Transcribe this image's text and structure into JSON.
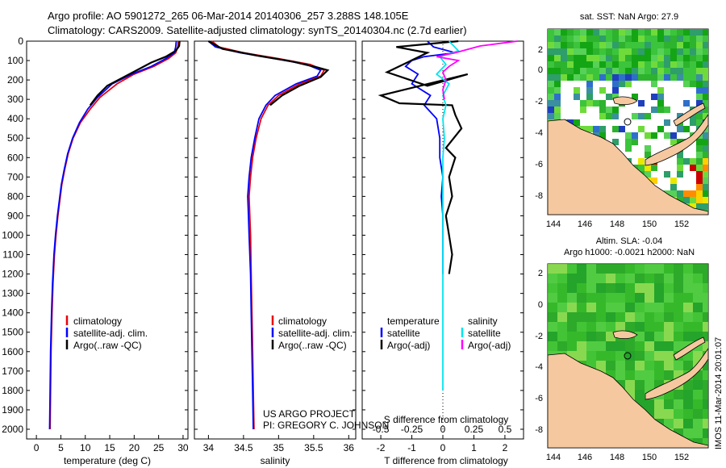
{
  "header": {
    "line1": "Argo profile: AO 5901272_265 06-Mar-2014 20140306_257 3.288S 148.105E",
    "line2": "Climatology: CARS2009. Satellite-adjusted climatology: synTS_20140304.nc (2.7d earlier)"
  },
  "colors": {
    "climatology": "#e8000b",
    "satellite": "#0000ff",
    "argo": "#000000",
    "sat_salinity": "#00e5ee",
    "argo_salinity": "#ff00ff",
    "land": "#f5c8a0"
  },
  "chart_data": [
    {
      "id": "temperature",
      "type": "line",
      "xlabel": "temperature (deg C)",
      "ylabel": "",
      "xlim": [
        -2,
        31
      ],
      "ylim": [
        2050,
        0
      ],
      "xticks": [
        0,
        5,
        10,
        15,
        20,
        25,
        30
      ],
      "yticks": [
        0,
        100,
        200,
        300,
        400,
        500,
        600,
        700,
        800,
        900,
        1000,
        1100,
        1200,
        1300,
        1400,
        1500,
        1600,
        1700,
        1800,
        1900,
        2000
      ],
      "legend": {
        "position": "lower-center",
        "items": [
          {
            "label": "climatology",
            "series": "climatology"
          },
          {
            "label": "satellite-adj. clim.",
            "series": "satellite"
          },
          {
            "label": "Argo(..raw -QC)",
            "series": "argo"
          }
        ]
      },
      "series": [
        {
          "name": "climatology",
          "key": "climatology",
          "points": [
            [
              29.0,
              0
            ],
            [
              28.9,
              30
            ],
            [
              28.5,
              60
            ],
            [
              27.0,
              90
            ],
            [
              24.0,
              130
            ],
            [
              20.0,
              170
            ],
            [
              16.5,
              220
            ],
            [
              13.0,
              290
            ],
            [
              11.0,
              350
            ],
            [
              9.0,
              420
            ],
            [
              7.5,
              500
            ],
            [
              6.5,
              580
            ],
            [
              5.8,
              660
            ],
            [
              5.2,
              740
            ],
            [
              4.8,
              820
            ],
            [
              4.4,
              900
            ],
            [
              4.0,
              1000
            ],
            [
              3.7,
              1100
            ],
            [
              3.4,
              1250
            ],
            [
              3.2,
              1400
            ],
            [
              3.0,
              1600
            ],
            [
              2.9,
              1800
            ],
            [
              2.8,
              2000
            ]
          ]
        },
        {
          "name": "satellite-adj. clim.",
          "key": "satellite",
          "points": [
            [
              28.6,
              0
            ],
            [
              28.5,
              30
            ],
            [
              28.2,
              60
            ],
            [
              26.5,
              90
            ],
            [
              23.5,
              130
            ],
            [
              19.5,
              170
            ],
            [
              15.5,
              220
            ],
            [
              12.5,
              290
            ],
            [
              10.5,
              350
            ],
            [
              8.8,
              420
            ],
            [
              7.4,
              500
            ],
            [
              6.4,
              580
            ],
            [
              5.7,
              660
            ],
            [
              5.1,
              740
            ],
            [
              4.7,
              820
            ],
            [
              4.3,
              900
            ],
            [
              3.9,
              1000
            ],
            [
              3.6,
              1100
            ],
            [
              3.3,
              1250
            ],
            [
              3.1,
              1400
            ],
            [
              2.9,
              1600
            ],
            [
              2.8,
              1800
            ],
            [
              2.7,
              2000
            ]
          ]
        },
        {
          "name": "Argo(..raw -QC)",
          "key": "argo",
          "points": [
            [
              29.3,
              0
            ],
            [
              29.2,
              25
            ],
            [
              28.5,
              50
            ],
            [
              26.5,
              80
            ],
            [
              23.5,
              110
            ],
            [
              20.5,
              150
            ],
            [
              17.5,
              190
            ],
            [
              14.5,
              230
            ],
            [
              12.5,
              280
            ],
            [
              11.0,
              330
            ]
          ]
        }
      ]
    },
    {
      "id": "salinity",
      "type": "line",
      "xlabel": "salinity",
      "ylabel": "",
      "xlim": [
        33.8,
        36.1
      ],
      "ylim": [
        2050,
        0
      ],
      "xticks": [
        34,
        34.5,
        35,
        35.5,
        36
      ],
      "legend": {
        "position": "lower-center",
        "items": [
          {
            "label": "climatology",
            "series": "climatology"
          },
          {
            "label": "satellite-adj. clim.",
            "series": "satellite"
          },
          {
            "label": "Argo(..raw -QC)",
            "series": "argo"
          }
        ]
      },
      "annotation": [
        "US ARGO PROJECT",
        "PI: GREGORY C. JOHNSON"
      ],
      "series": [
        {
          "name": "climatology",
          "key": "climatology",
          "points": [
            [
              34.05,
              0
            ],
            [
              34.15,
              30
            ],
            [
              34.5,
              60
            ],
            [
              35.0,
              90
            ],
            [
              35.45,
              120
            ],
            [
              35.65,
              150
            ],
            [
              35.6,
              180
            ],
            [
              35.3,
              220
            ],
            [
              35.0,
              280
            ],
            [
              34.85,
              330
            ],
            [
              34.75,
              400
            ],
            [
              34.68,
              500
            ],
            [
              34.63,
              600
            ],
            [
              34.6,
              700
            ],
            [
              34.58,
              800
            ],
            [
              34.59,
              900
            ],
            [
              34.6,
              1000
            ],
            [
              34.61,
              1200
            ],
            [
              34.62,
              1400
            ],
            [
              34.63,
              1600
            ],
            [
              34.64,
              1800
            ],
            [
              34.65,
              2000
            ]
          ]
        },
        {
          "name": "satellite-adj. clim.",
          "key": "satellite",
          "points": [
            [
              34.0,
              0
            ],
            [
              34.1,
              30
            ],
            [
              34.45,
              60
            ],
            [
              34.95,
              90
            ],
            [
              35.4,
              120
            ],
            [
              35.6,
              150
            ],
            [
              35.55,
              180
            ],
            [
              35.25,
              220
            ],
            [
              34.95,
              280
            ],
            [
              34.82,
              330
            ],
            [
              34.72,
              400
            ],
            [
              34.66,
              500
            ],
            [
              34.61,
              600
            ],
            [
              34.58,
              700
            ],
            [
              34.56,
              800
            ],
            [
              34.57,
              900
            ],
            [
              34.58,
              1000
            ],
            [
              34.6,
              1200
            ],
            [
              34.61,
              1400
            ],
            [
              34.62,
              1600
            ],
            [
              34.63,
              1800
            ],
            [
              34.64,
              2000
            ]
          ]
        },
        {
          "name": "Argo(..raw -QC)",
          "key": "argo",
          "points": [
            [
              34.0,
              0
            ],
            [
              34.2,
              40
            ],
            [
              34.7,
              75
            ],
            [
              35.2,
              105
            ],
            [
              35.55,
              135
            ],
            [
              35.7,
              150
            ],
            [
              35.6,
              185
            ],
            [
              35.3,
              230
            ],
            [
              35.05,
              280
            ],
            [
              34.88,
              330
            ]
          ]
        }
      ]
    },
    {
      "id": "difference",
      "type": "line",
      "xlabel": "T difference from climatology",
      "xlabel_top": "S difference from climatology",
      "xlim": [
        -2.6,
        2.6
      ],
      "ylim": [
        2050,
        0
      ],
      "xticks": [
        -2,
        -1,
        0,
        1,
        2
      ],
      "xtick_labels_s": [
        "-0.5",
        "-0.25",
        "0",
        "0.25",
        "0.5"
      ],
      "legend": {
        "position": "lower-center",
        "items": [
          {
            "label": "temperature",
            "series": ""
          },
          {
            "label": "salinity",
            "series": ""
          },
          {
            "label": "satellite",
            "series": "satellite"
          },
          {
            "label": "satellite",
            "series": "sat_salinity"
          },
          {
            "label": "Argo(-adj)",
            "series": "argo"
          },
          {
            "label": "Argo(-adj)",
            "series": "argo_salinity"
          }
        ]
      },
      "series": [
        {
          "name": "T satellite",
          "key": "satellite",
          "points": [
            [
              -0.5,
              0
            ],
            [
              -0.3,
              30
            ],
            [
              0.4,
              60
            ],
            [
              -0.6,
              80
            ],
            [
              -1.0,
              100
            ],
            [
              -1.2,
              130
            ],
            [
              -0.8,
              170
            ],
            [
              -1.0,
              220
            ],
            [
              -0.4,
              280
            ],
            [
              -0.6,
              330
            ],
            [
              -0.2,
              400
            ],
            [
              -0.1,
              500
            ],
            [
              -0.1,
              600
            ],
            [
              0,
              700
            ],
            [
              -0.05,
              800
            ],
            [
              0,
              900
            ],
            [
              0,
              1000
            ],
            [
              0,
              1100
            ],
            [
              0,
              1200
            ]
          ]
        },
        {
          "name": "T Argo",
          "key": "argo",
          "points": [
            [
              0.5,
              0
            ],
            [
              -1.5,
              30
            ],
            [
              -0.5,
              60
            ],
            [
              -1.8,
              160
            ],
            [
              -0.5,
              230
            ],
            [
              0.8,
              170
            ],
            [
              -2.0,
              280
            ],
            [
              -1.4,
              320
            ],
            [
              0.3,
              330
            ],
            [
              0.4,
              380
            ],
            [
              0.6,
              450
            ],
            [
              0.1,
              550
            ],
            [
              0.4,
              600
            ],
            [
              0.2,
              700
            ],
            [
              0.3,
              800
            ],
            [
              0.1,
              900
            ],
            [
              0.2,
              1000
            ],
            [
              0.3,
              1100
            ],
            [
              0.2,
              1200
            ]
          ]
        },
        {
          "name": "S satellite",
          "key": "sat_salinity",
          "points": [
            [
              0.2,
              0
            ],
            [
              0.5,
              50
            ],
            [
              -0.1,
              80
            ],
            [
              0.1,
              120
            ],
            [
              -0.2,
              170
            ],
            [
              0.2,
              220
            ],
            [
              0.0,
              280
            ],
            [
              0.1,
              330
            ],
            [
              0.0,
              400
            ],
            [
              0.05,
              500
            ],
            [
              0,
              600
            ],
            [
              0,
              800
            ],
            [
              0,
              1200
            ],
            [
              0,
              1500
            ],
            [
              0,
              1800
            ]
          ]
        },
        {
          "name": "S Argo",
          "key": "argo_salinity",
          "points": [
            [
              2.4,
              0
            ],
            [
              1.2,
              25
            ],
            [
              0.4,
              60
            ],
            [
              -0.2,
              80
            ],
            [
              0.5,
              100
            ],
            [
              0.2,
              130
            ],
            [
              0.0,
              160
            ],
            [
              0.1,
              200
            ],
            [
              0.0,
              250
            ],
            [
              0.05,
              300
            ]
          ]
        }
      ]
    }
  ],
  "map_sst": {
    "title": "sat. SST: NaN Argo: 27.9",
    "xticks": [
      "144",
      "146",
      "148",
      "150",
      "152"
    ],
    "yticks": [
      "2",
      "0",
      "-2",
      "-4",
      "-6",
      "-8"
    ]
  },
  "map_sla": {
    "title1": "Altim. SLA: -0.04",
    "title2": "Argo h1000: -0.0021 h2000: NaN",
    "xticks": [
      "144",
      "146",
      "148",
      "150",
      "152"
    ],
    "yticks": [
      "2",
      "0",
      "-2",
      "-4",
      "-6",
      "-8"
    ]
  },
  "side_text": "IMOS 11-Mar-2014 20:01:07"
}
